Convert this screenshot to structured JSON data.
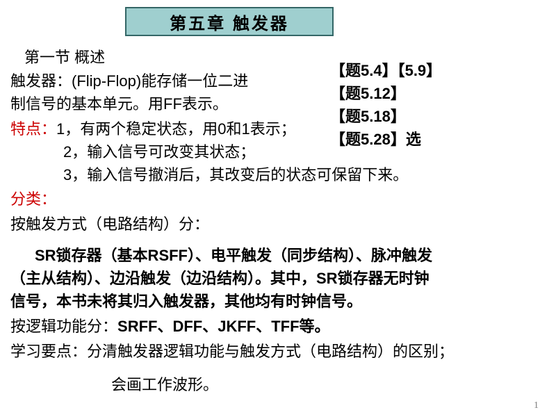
{
  "chapterTitle": "第五章   触发器",
  "sectionTitle": "第一节 概述",
  "problems": {
    "line1": "【题5.4】【5.9】",
    "line2": "【题5.12】",
    "line3": "【题5.18】",
    "line4": "【题5.28】选"
  },
  "defPart1": "触发器：(Flip-Flop)能存储一位二进",
  "defPart2": "制信号的基本单元。用FF表示。",
  "featuresLabel": "特点：",
  "feature1": "1，有两个稳定状态，用0和1表示；",
  "feature2": "2，输入信号可改变其状态；",
  "feature3": "3，输入信号撤消后，其改变后的状态可保留下来。",
  "categoryLabel": "分类：",
  "byTriggerMethod": "按触发方式（电路结构）分：",
  "srText1": "SR锁存器（基本RSFF）、电平触发（同步结构）、脉冲触发",
  "srText2": "（主从结构）、边沿触发（边沿结构）。其中，SR锁存器无时钟",
  "srText3": "信号，本书未将其归入触发器，其他均有时钟信号。",
  "byLogicLabel": "按逻辑功能分：",
  "byLogicTypes": "SRFF、DFF、JKFF、TFF等。",
  "studyPoints": "学习要点：分清触发器逻辑功能与触发方式（电路结构）的区别；",
  "waveText": "会画工作波形。",
  "pageNumber": "1",
  "colors": {
    "titleBoxBg": "#9fcfcf",
    "titleBoxBorder": "#336666",
    "redText": "#cc0000",
    "background": "#ffffff",
    "pageNumColor": "#808080"
  },
  "typography": {
    "titleFontSize": 24,
    "bodyFontSize": 22,
    "pageNumFontSize": 14
  }
}
